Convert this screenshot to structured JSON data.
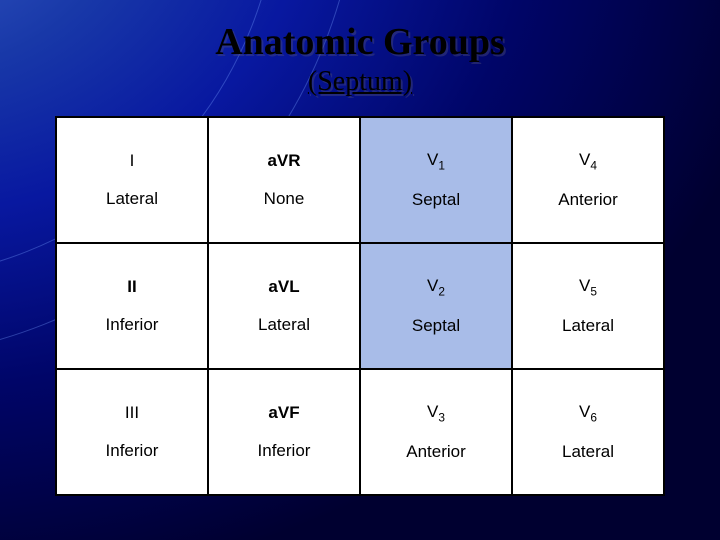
{
  "title": "Anatomic Groups",
  "subtitle": "(Septum)",
  "table": {
    "highlight_column": 2,
    "highlight_rows": [
      0,
      1
    ],
    "highlight_bg": "#a8bce8",
    "rows": [
      [
        {
          "lead": "I",
          "lead_bold": false,
          "group": "Lateral"
        },
        {
          "lead": "aVR",
          "lead_bold": true,
          "group": "None"
        },
        {
          "lead": "V",
          "sub": "1",
          "lead_bold": false,
          "group": "Septal"
        },
        {
          "lead": "V",
          "sub": "4",
          "lead_bold": false,
          "group": "Anterior"
        }
      ],
      [
        {
          "lead": "II",
          "lead_bold": true,
          "group": "Inferior"
        },
        {
          "lead": "aVL",
          "lead_bold": true,
          "group": "Lateral"
        },
        {
          "lead": "V",
          "sub": "2",
          "lead_bold": false,
          "group": "Septal"
        },
        {
          "lead": "V",
          "sub": "5",
          "lead_bold": false,
          "group": "Lateral"
        }
      ],
      [
        {
          "lead": "III",
          "lead_bold": false,
          "group": "Inferior"
        },
        {
          "lead": "aVF",
          "lead_bold": true,
          "group": "Inferior"
        },
        {
          "lead": "V",
          "sub": "3",
          "lead_bold": false,
          "group": "Anterior"
        },
        {
          "lead": "V",
          "sub": "6",
          "lead_bold": false,
          "group": "Lateral"
        }
      ]
    ]
  },
  "colors": {
    "text": "#000000",
    "table_bg": "#ffffff",
    "border": "#000000",
    "highlight": "#a8bce8"
  }
}
